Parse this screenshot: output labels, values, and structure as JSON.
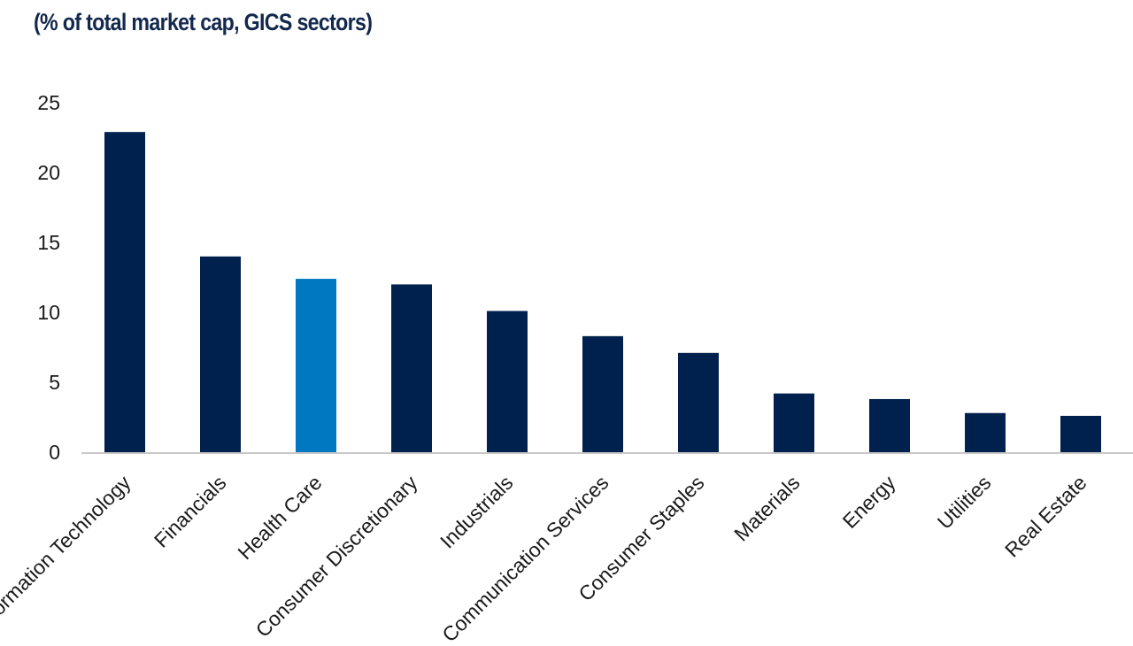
{
  "chart_data": {
    "type": "bar",
    "title": "(% of total market cap, GICS sectors)",
    "categories": [
      "Information Technology",
      "Financials",
      "Health Care",
      "Consumer Discretionary",
      "Industrials",
      "Communication Services",
      "Consumer Staples",
      "Materials",
      "Energy",
      "Utilities",
      "Real Estate"
    ],
    "values": [
      22.9,
      14.0,
      12.4,
      12.0,
      10.1,
      8.3,
      7.1,
      4.2,
      3.8,
      2.8,
      2.6
    ],
    "highlight_index": 2,
    "ylim": [
      0,
      25
    ],
    "yticks": [
      0,
      5,
      10,
      15,
      20,
      25
    ],
    "xlabel": "",
    "ylabel": "",
    "grid": false,
    "colors": {
      "bar": "#00214d",
      "highlight": "#0078c1",
      "axis": "#c8c8c8"
    }
  }
}
